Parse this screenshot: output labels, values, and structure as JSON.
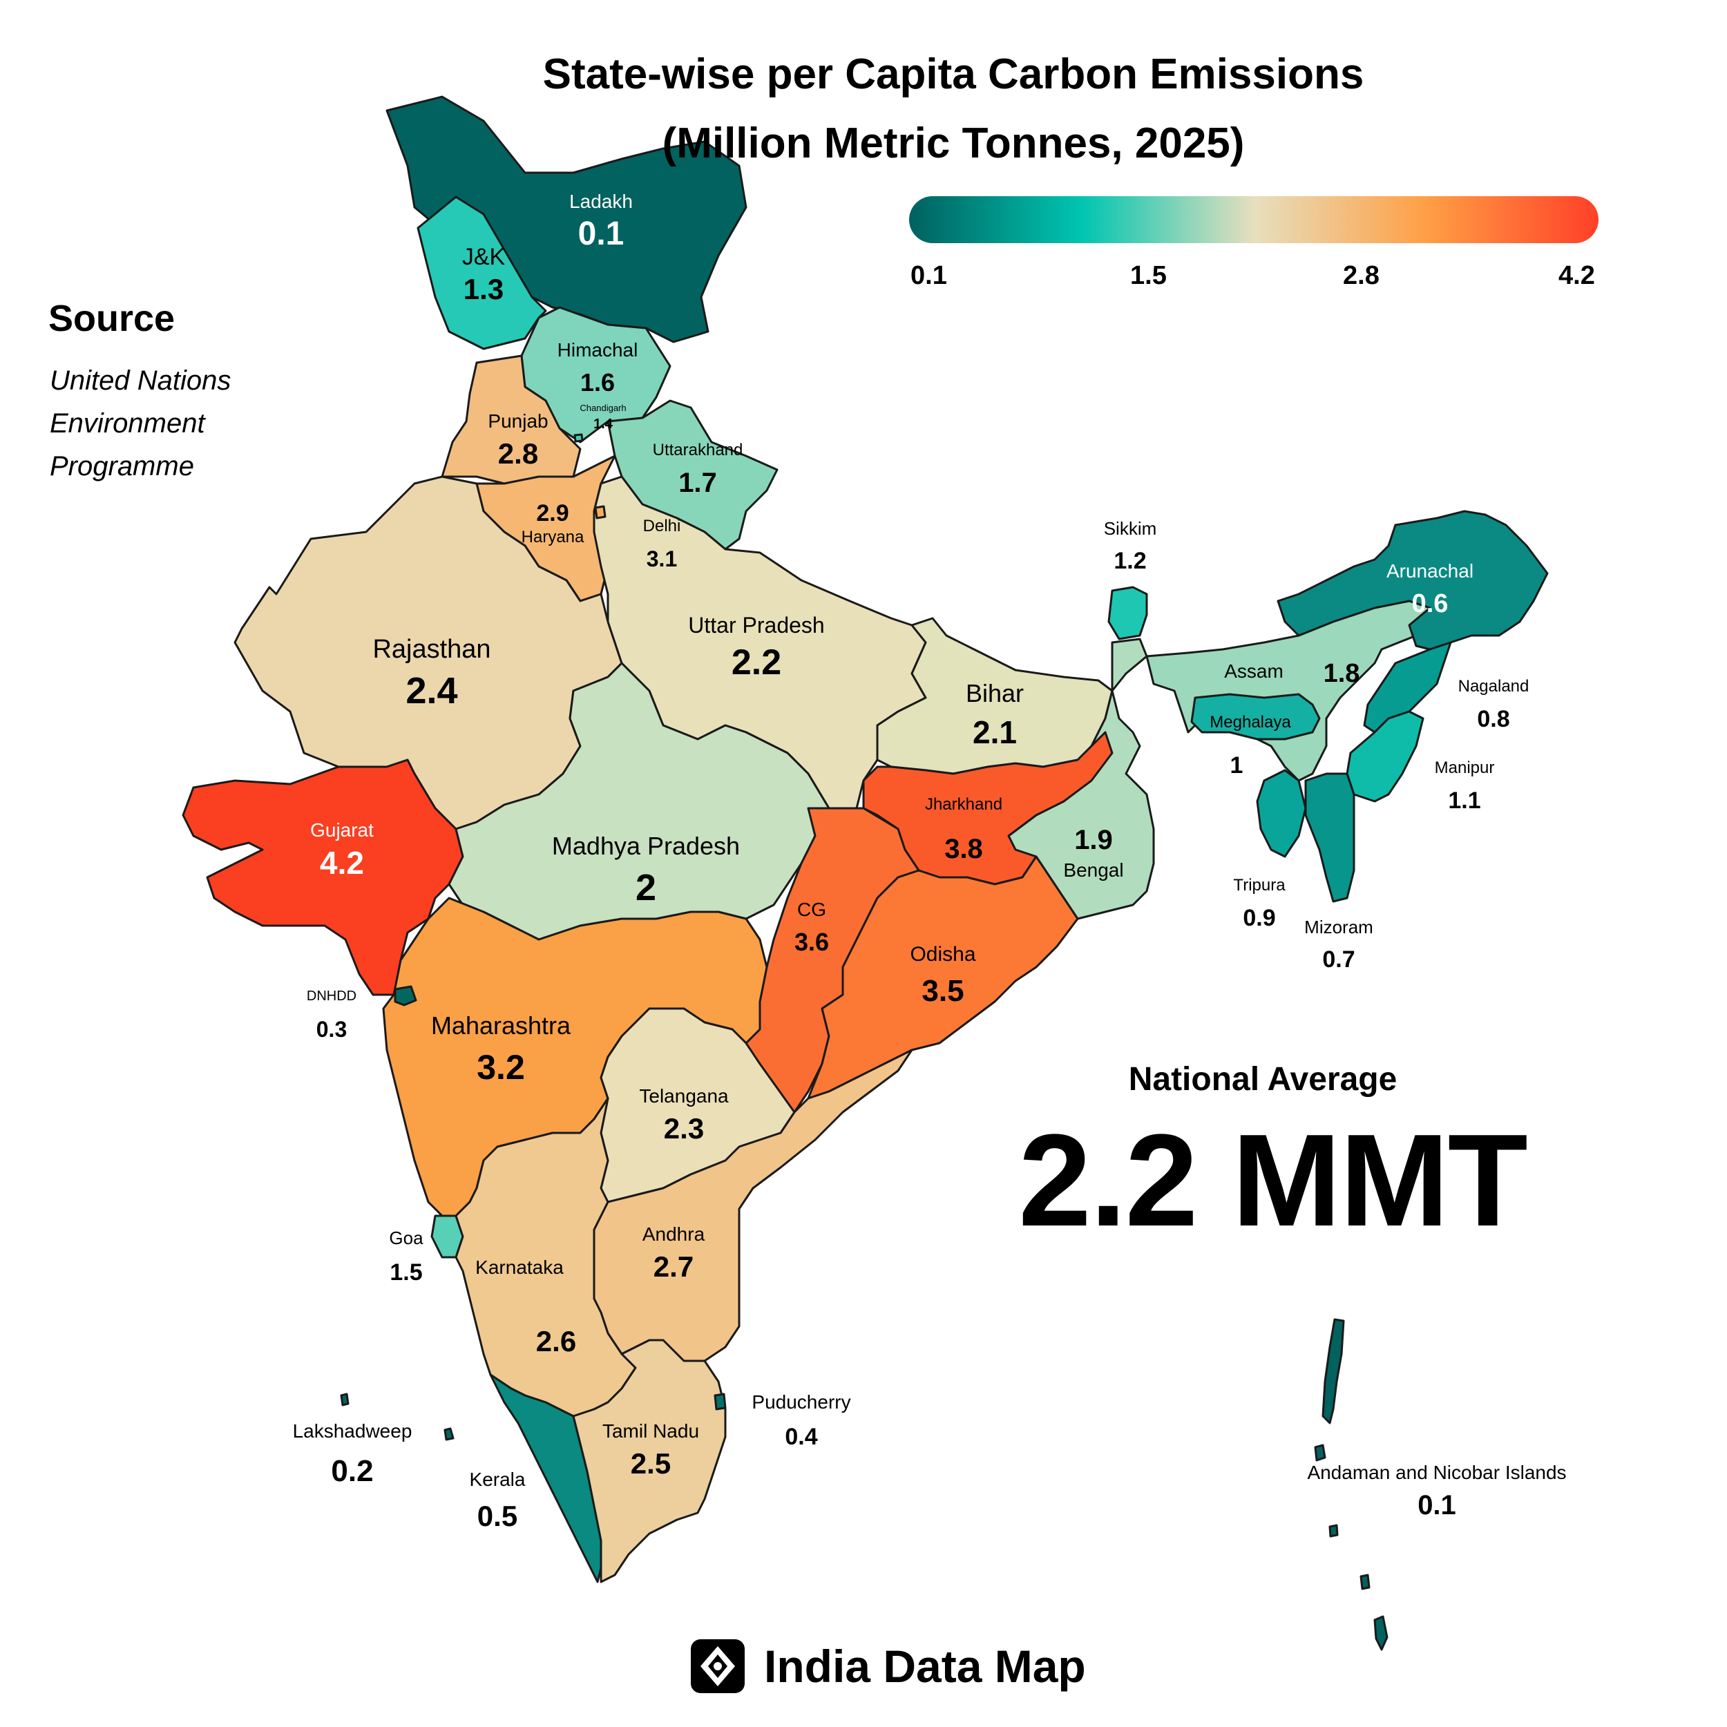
{
  "title": {
    "line1": "State-wise per Capita Carbon Emissions",
    "line2": "(Million Metric Tonnes, 2025)"
  },
  "legend": {
    "ticks": [
      "0.1",
      "1.5",
      "2.8",
      "4.2"
    ],
    "colors": [
      "#00615f",
      "#00c5b1",
      "#e6dfbe",
      "#ff9f45",
      "#ff4028"
    ]
  },
  "source": {
    "heading": "Source",
    "lines": [
      "United Nations",
      "Environment",
      "Programme"
    ]
  },
  "national_average": {
    "heading": "National Average",
    "value": "2.2 MMT"
  },
  "brand": {
    "name": "India Data Map",
    "icon": "map-pin-diamond-icon"
  },
  "regions": [
    {
      "name": "Ladakh",
      "value": "0.1",
      "color": "#02625f"
    },
    {
      "name": "J&K",
      "value": "1.3",
      "color": "#26c9b5"
    },
    {
      "name": "Himachal",
      "value": "1.6",
      "color": "#7ed5bb"
    },
    {
      "name": "Chandigarh",
      "value": "1.4",
      "color": "#3fcdb8"
    },
    {
      "name": "Punjab",
      "value": "2.8",
      "color": "#f2bd7e"
    },
    {
      "name": "Haryana",
      "value": "2.9",
      "color": "#f5b772"
    },
    {
      "name": "Uttarakhand",
      "value": "1.7",
      "color": "#88d6b9"
    },
    {
      "name": "Delhi",
      "value": "3.1",
      "color": "#f6ad5e"
    },
    {
      "name": "Rajasthan",
      "value": "2.4",
      "color": "#ecd7ac"
    },
    {
      "name": "Uttar Pradesh",
      "value": "2.2",
      "color": "#e8e0b9"
    },
    {
      "name": "Bihar",
      "value": "2.1",
      "color": "#e2e2bb"
    },
    {
      "name": "Sikkim",
      "value": "1.2",
      "color": "#1ec7b1"
    },
    {
      "name": "Arunachal",
      "value": "0.6",
      "color": "#0a8a83"
    },
    {
      "name": "Assam",
      "value": "1.8",
      "color": "#9cd8bb"
    },
    {
      "name": "Meghalaya",
      "value": "1",
      "color": "#14b0a3"
    },
    {
      "name": "Nagaland",
      "value": "0.8",
      "color": "#069c92"
    },
    {
      "name": "Manipur",
      "value": "1.1",
      "color": "#0fbca9"
    },
    {
      "name": "Tripura",
      "value": "0.9",
      "color": "#0aa59a"
    },
    {
      "name": "Mizoram",
      "value": "0.7",
      "color": "#07958c"
    },
    {
      "name": "Gujarat",
      "value": "4.2",
      "color": "#fb3f21"
    },
    {
      "name": "Madhya Pradesh",
      "value": "2",
      "color": "#c8e1c1"
    },
    {
      "name": "Jharkhand",
      "value": "3.8",
      "color": "#fa5a2a"
    },
    {
      "name": "Bengal",
      "value": "1.9",
      "color": "#b1ddbe"
    },
    {
      "name": "CG",
      "value": "3.6",
      "color": "#fb6e33"
    },
    {
      "name": "Odisha",
      "value": "3.5",
      "color": "#fb7935"
    },
    {
      "name": "DNHDD",
      "value": "0.3",
      "color": "#03675f"
    },
    {
      "name": "Maharashtra",
      "value": "3.2",
      "color": "#faa046"
    },
    {
      "name": "Telangana",
      "value": "2.3",
      "color": "#eadfb7"
    },
    {
      "name": "Goa",
      "value": "1.5",
      "color": "#58cfb7"
    },
    {
      "name": "Andhra",
      "value": "2.7",
      "color": "#f1c48a"
    },
    {
      "name": "Karnataka",
      "value": "2.6",
      "color": "#f0c990"
    },
    {
      "name": "Tamil Nadu",
      "value": "2.5",
      "color": "#eccf9d"
    },
    {
      "name": "Kerala",
      "value": "0.5",
      "color": "#0a8a80"
    },
    {
      "name": "Puducherry",
      "value": "0.4",
      "color": "#04716a"
    },
    {
      "name": "Lakshadweep",
      "value": "0.2",
      "color": "#04665f"
    },
    {
      "name": "Andaman and Nicobar Islands",
      "value": "0.1",
      "color": "#02625f"
    }
  ]
}
